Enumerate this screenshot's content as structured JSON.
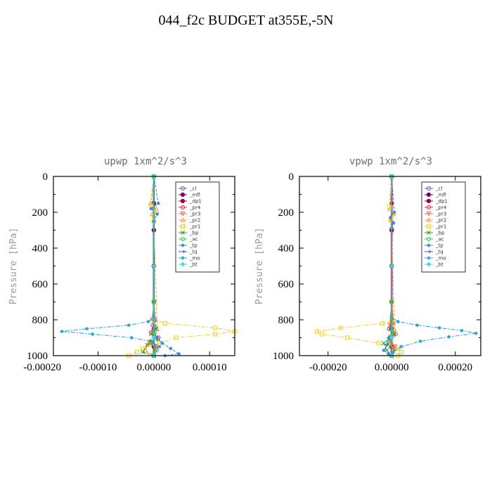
{
  "title": "044_f2c  BUDGET at355E,-5N",
  "chart_data": [
    {
      "type": "line",
      "title": "upwp   1xm^2/s^3",
      "ylabel": "Pressure [hPa]",
      "xlabel": "",
      "xlim": [
        -0.00018,
        0.000145
      ],
      "ylim": [
        1000,
        0
      ],
      "xticks": [
        "-0.00010",
        "-0.00020",
        "0.00000",
        "0.00010"
      ],
      "xtick_values": [
        -0.0001,
        -0.0002,
        0.0,
        0.0001
      ],
      "xtick_labels": [
        "-0.00020",
        "-0.00010",
        "0.00000",
        "0.00010"
      ],
      "xtick_label_values": [
        -0.0002,
        -0.0001,
        0.0,
        0.0001
      ],
      "yticks": [
        0,
        200,
        400,
        600,
        800,
        1000
      ],
      "legend_position": "top-right",
      "series": [
        {
          "name": "_cl",
          "color": "#8855aa",
          "marker": "circle-open",
          "x": [
            0,
            0,
            0,
            0,
            0,
            0,
            0,
            0
          ],
          "y": [
            0,
            150,
            300,
            500,
            700,
            850,
            950,
            1000
          ]
        },
        {
          "name": "_mfl",
          "color": "#7a007a",
          "marker": "circle",
          "x": [
            0,
            0,
            0,
            0,
            0,
            0,
            0,
            0
          ],
          "y": [
            0,
            150,
            300,
            500,
            700,
            850,
            950,
            1000
          ]
        },
        {
          "name": "_dp1",
          "color": "#a00030",
          "marker": "circle",
          "x": [
            0,
            0,
            0,
            0,
            0,
            0,
            0,
            0
          ],
          "y": [
            0,
            150,
            300,
            500,
            700,
            850,
            950,
            1000
          ]
        },
        {
          "name": "_pr4",
          "color": "#e03050",
          "marker": "circle-open",
          "x": [
            0,
            0,
            2e-06,
            -2e-06,
            0,
            -5e-06,
            8e-06,
            -6e-06,
            4e-06,
            0
          ],
          "y": [
            0,
            700,
            800,
            830,
            850,
            870,
            900,
            920,
            950,
            1000
          ]
        },
        {
          "name": "_pr3",
          "color": "#ff6040",
          "marker": "triangle-down",
          "x": [
            0,
            0,
            -3e-06,
            4e-06,
            -2e-06,
            6e-06,
            -5e-06,
            3e-06,
            0
          ],
          "y": [
            0,
            700,
            800,
            850,
            870,
            900,
            930,
            960,
            1000
          ]
        },
        {
          "name": "_pr2",
          "color": "#ffa020",
          "marker": "triangle",
          "x": [
            0,
            -6e-06,
            4e-06,
            -3e-06,
            0,
            6e-06,
            -1e-05,
            -1.5e-05,
            0
          ],
          "y": [
            0,
            150,
            180,
            210,
            250,
            850,
            930,
            970,
            1000
          ]
        },
        {
          "name": "_pr1",
          "color": "#f0d020",
          "marker": "square-open",
          "x": [
            0,
            -5e-06,
            5e-06,
            0,
            0,
            2e-05,
            0.00011,
            0.000145,
            0.00011,
            4e-05,
            1e-05,
            -2e-05,
            -3e-05,
            -4.5e-05
          ],
          "y": [
            0,
            160,
            200,
            250,
            800,
            820,
            845,
            865,
            880,
            900,
            930,
            960,
            980,
            1000
          ]
        },
        {
          "name": "_bp",
          "color": "#20a020",
          "marker": "x",
          "x": [
            0,
            0,
            4e-06,
            -5e-06,
            8e-06,
            -1.2e-05,
            -2e-05,
            0
          ],
          "y": [
            0,
            700,
            850,
            880,
            910,
            940,
            980,
            1000
          ]
        },
        {
          "name": "_ac",
          "color": "#40d040",
          "marker": "circle-open",
          "x": [
            0,
            0,
            2e-06,
            -3e-06,
            5e-06,
            0
          ],
          "y": [
            0,
            700,
            870,
            930,
            970,
            1000
          ]
        },
        {
          "name": "_tp",
          "color": "#3080e0",
          "marker": "star",
          "x": [
            0,
            8e-06,
            -5e-06,
            6e-06,
            0,
            0,
            5e-06,
            1.5e-05,
            3e-05,
            4.5e-05,
            2e-05
          ],
          "y": [
            0,
            150,
            180,
            210,
            250,
            850,
            900,
            930,
            960,
            990,
            1000
          ]
        },
        {
          "name": "_tq",
          "color": "#3050d0",
          "marker": "arrow",
          "x": [
            0,
            0,
            0,
            0
          ],
          "y": [
            0,
            500,
            900,
            1000
          ]
        },
        {
          "name": "_mo",
          "color": "#20a0d0",
          "marker": "star",
          "x": [
            0,
            0,
            -1e-05,
            -4.5e-05,
            -0.00012,
            -0.000165,
            -0.00011,
            -4e-05,
            -5e-06,
            1e-05,
            0
          ],
          "y": [
            0,
            790,
            810,
            830,
            850,
            865,
            880,
            900,
            920,
            950,
            1000
          ]
        },
        {
          "name": "_bt",
          "color": "#30e0e0",
          "marker": "diamond",
          "x": [
            0,
            0,
            0,
            0
          ],
          "y": [
            0,
            500,
            900,
            1000
          ]
        }
      ]
    },
    {
      "type": "line",
      "title": "vpwp   1xm^2/s^3",
      "ylabel": "Pressure [hPa]",
      "xlabel": "",
      "xlim": [
        -0.00029,
        0.00028
      ],
      "ylim": [
        1000,
        0
      ],
      "xtick_values": [
        -0.0002,
        0.0,
        0.0002
      ],
      "xtick_labels": [
        "-0.00020",
        "0.00000",
        "0.00020"
      ],
      "xtick_label_values": [
        -0.0002,
        0.0,
        0.0002
      ],
      "yticks": [
        0,
        200,
        400,
        600,
        800,
        1000
      ],
      "legend_position": "top-right",
      "series": [
        {
          "name": "_cl",
          "color": "#8855aa",
          "marker": "circle-open",
          "x": [
            0,
            0,
            0,
            0,
            0,
            0,
            0,
            0
          ],
          "y": [
            0,
            150,
            300,
            500,
            700,
            850,
            950,
            1000
          ]
        },
        {
          "name": "_mfl",
          "color": "#7a007a",
          "marker": "circle",
          "x": [
            0,
            0,
            0,
            0,
            0,
            0,
            0,
            0
          ],
          "y": [
            0,
            150,
            300,
            500,
            700,
            850,
            950,
            1000
          ]
        },
        {
          "name": "_dp1",
          "color": "#a00030",
          "marker": "circle",
          "x": [
            0,
            0,
            0,
            0,
            0,
            0,
            0,
            0
          ],
          "y": [
            0,
            150,
            300,
            500,
            700,
            850,
            950,
            1000
          ]
        },
        {
          "name": "_pr4",
          "color": "#e03050",
          "marker": "circle-open",
          "x": [
            0,
            0,
            5e-06,
            -8e-06,
            1.2e-05,
            -6e-06,
            1e-05,
            0
          ],
          "y": [
            0,
            700,
            820,
            850,
            880,
            920,
            960,
            1000
          ]
        },
        {
          "name": "_pr3",
          "color": "#ff6040",
          "marker": "triangle-down",
          "x": [
            0,
            0,
            -6e-06,
            8e-06,
            -5e-06,
            1e-05,
            0
          ],
          "y": [
            0,
            700,
            830,
            870,
            900,
            950,
            1000
          ]
        },
        {
          "name": "_pr2",
          "color": "#ffa020",
          "marker": "triangle",
          "x": [
            0,
            -6e-06,
            6e-06,
            -4e-06,
            0,
            8e-06,
            -1.2e-05,
            0
          ],
          "y": [
            0,
            180,
            210,
            240,
            280,
            850,
            930,
            1000
          ]
        },
        {
          "name": "_pr1",
          "color": "#f0d020",
          "marker": "square-open",
          "x": [
            0,
            -8e-06,
            6e-06,
            0,
            0,
            -3e-05,
            -0.00016,
            -0.000235,
            -0.00022,
            -0.00014,
            -4e-05,
            2e-05,
            3e-05,
            2e-05
          ],
          "y": [
            0,
            170,
            210,
            250,
            800,
            820,
            845,
            865,
            880,
            900,
            930,
            960,
            980,
            1000
          ]
        },
        {
          "name": "_bp",
          "color": "#20a020",
          "marker": "x",
          "x": [
            0,
            0,
            -5e-06,
            8e-06,
            -1e-05,
            -2.5e-05,
            -1.5e-05,
            0
          ],
          "y": [
            0,
            700,
            850,
            880,
            910,
            930,
            970,
            1000
          ]
        },
        {
          "name": "_ac",
          "color": "#40d040",
          "marker": "circle-open",
          "x": [
            0,
            0,
            3e-06,
            -4e-06,
            6e-06,
            0
          ],
          "y": [
            0,
            700,
            870,
            930,
            970,
            1000
          ]
        },
        {
          "name": "_tp",
          "color": "#3080e0",
          "marker": "star",
          "x": [
            0,
            8e-06,
            -4e-06,
            6e-06,
            0,
            0,
            -8e-06,
            -1.5e-05,
            -2.5e-05,
            -1e-05,
            0
          ],
          "y": [
            0,
            200,
            230,
            260,
            290,
            850,
            900,
            940,
            970,
            990,
            1000
          ]
        },
        {
          "name": "_tq",
          "color": "#3050d0",
          "marker": "arrow",
          "x": [
            0,
            0,
            0,
            0
          ],
          "y": [
            0,
            500,
            900,
            1000
          ]
        },
        {
          "name": "_mo",
          "color": "#20a0d0",
          "marker": "star",
          "x": [
            0,
            0,
            2e-05,
            8e-05,
            0.00015,
            0.00022,
            0.000265,
            0.00018,
            9e-05,
            3e-05,
            5e-06,
            0
          ],
          "y": [
            0,
            790,
            810,
            830,
            845,
            860,
            875,
            895,
            920,
            950,
            980,
            1000
          ]
        },
        {
          "name": "_bt",
          "color": "#30e0e0",
          "marker": "diamond",
          "x": [
            0,
            0,
            0,
            0
          ],
          "y": [
            0,
            500,
            900,
            1000
          ]
        }
      ]
    }
  ]
}
